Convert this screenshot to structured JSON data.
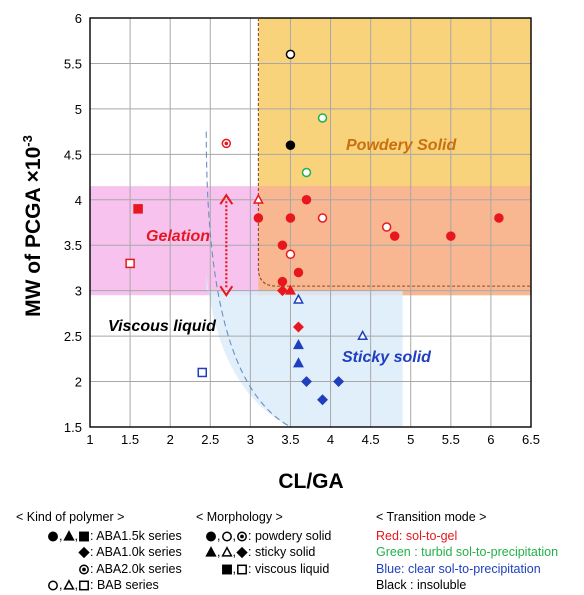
{
  "chart_data": {
    "type": "scatter",
    "xlabel": "CL/GA",
    "ylabel": "MW of PCGA ×10",
    "ylabel_sup": "-3",
    "xlim": [
      1,
      6.5
    ],
    "ylim": [
      1.5,
      6
    ],
    "x_ticks": [
      "1",
      "1.5",
      "2",
      "2.5",
      "3",
      "3.5",
      "4",
      "4.5",
      "5",
      "5.5",
      "6",
      "6.5"
    ],
    "y_ticks": [
      "1.5",
      "2",
      "2.5",
      "3",
      "3.5",
      "4",
      "4.5",
      "5",
      "5.5",
      "6"
    ],
    "grid": true,
    "regions": [
      {
        "label": "Powdery Solid",
        "color": "#f5c96e"
      },
      {
        "label": "Gelation",
        "color": "#f7b8ee"
      },
      {
        "label": "Viscous liquid",
        "color": "#000000"
      },
      {
        "label": "Sticky solid",
        "color": "#1f3fbf"
      }
    ],
    "colors": {
      "red": "#e8171f",
      "green": "#23b04a",
      "blue": "#1f3fbf",
      "black": "#000000"
    },
    "points": [
      {
        "x": 3.5,
        "y": 5.6,
        "shape": "circle",
        "fill": "open",
        "color": "black"
      },
      {
        "x": 3.5,
        "y": 4.6,
        "shape": "circle",
        "fill": "filled",
        "color": "black"
      },
      {
        "x": 3.9,
        "y": 4.9,
        "shape": "circle",
        "fill": "open",
        "color": "green"
      },
      {
        "x": 3.7,
        "y": 4.3,
        "shape": "circle",
        "fill": "open",
        "color": "green"
      },
      {
        "x": 2.7,
        "y": 4.62,
        "shape": "circle",
        "fill": "dotted",
        "color": "red"
      },
      {
        "x": 3.1,
        "y": 4.0,
        "shape": "triangle",
        "fill": "open",
        "color": "red"
      },
      {
        "x": 3.1,
        "y": 3.8,
        "shape": "circle",
        "fill": "filled",
        "color": "red"
      },
      {
        "x": 3.5,
        "y": 3.8,
        "shape": "circle",
        "fill": "filled",
        "color": "red"
      },
      {
        "x": 3.7,
        "y": 4.0,
        "shape": "circle",
        "fill": "filled",
        "color": "red"
      },
      {
        "x": 3.9,
        "y": 3.8,
        "shape": "circle",
        "fill": "open",
        "color": "red"
      },
      {
        "x": 3.4,
        "y": 3.5,
        "shape": "circle",
        "fill": "filled",
        "color": "red"
      },
      {
        "x": 3.5,
        "y": 3.4,
        "shape": "circle",
        "fill": "open",
        "color": "red"
      },
      {
        "x": 3.4,
        "y": 3.1,
        "shape": "circle",
        "fill": "filled",
        "color": "red"
      },
      {
        "x": 3.6,
        "y": 3.2,
        "shape": "circle",
        "fill": "filled",
        "color": "red"
      },
      {
        "x": 3.4,
        "y": 3.0,
        "shape": "diamond",
        "fill": "filled",
        "color": "red"
      },
      {
        "x": 3.5,
        "y": 3.0,
        "shape": "triangle",
        "fill": "filled",
        "color": "red"
      },
      {
        "x": 4.7,
        "y": 3.7,
        "shape": "circle",
        "fill": "open",
        "color": "red"
      },
      {
        "x": 4.8,
        "y": 3.6,
        "shape": "circle",
        "fill": "filled",
        "color": "red"
      },
      {
        "x": 5.5,
        "y": 3.6,
        "shape": "circle",
        "fill": "filled",
        "color": "red"
      },
      {
        "x": 6.1,
        "y": 3.8,
        "shape": "circle",
        "fill": "filled",
        "color": "red"
      },
      {
        "x": 1.6,
        "y": 3.9,
        "shape": "square",
        "fill": "filled",
        "color": "red"
      },
      {
        "x": 1.5,
        "y": 3.3,
        "shape": "square",
        "fill": "open",
        "color": "red"
      },
      {
        "x": 3.6,
        "y": 2.6,
        "shape": "diamond",
        "fill": "filled",
        "color": "red"
      },
      {
        "x": 3.6,
        "y": 2.9,
        "shape": "triangle",
        "fill": "open",
        "color": "blue"
      },
      {
        "x": 3.6,
        "y": 2.4,
        "shape": "triangle",
        "fill": "filled",
        "color": "blue"
      },
      {
        "x": 4.4,
        "y": 2.5,
        "shape": "triangle",
        "fill": "open",
        "color": "blue"
      },
      {
        "x": 3.6,
        "y": 2.2,
        "shape": "triangle",
        "fill": "filled",
        "color": "blue"
      },
      {
        "x": 3.7,
        "y": 2.0,
        "shape": "diamond",
        "fill": "filled",
        "color": "blue"
      },
      {
        "x": 4.1,
        "y": 2.0,
        "shape": "diamond",
        "fill": "filled",
        "color": "blue"
      },
      {
        "x": 3.9,
        "y": 1.8,
        "shape": "diamond",
        "fill": "filled",
        "color": "blue"
      },
      {
        "x": 2.4,
        "y": 2.1,
        "shape": "square",
        "fill": "open",
        "color": "blue"
      }
    ]
  },
  "legend": {
    "polymer_title": "< Kind of polymer >",
    "polymer_items": [
      {
        "label": ": ABA1.5k series"
      },
      {
        "label": ": ABA1.0k series"
      },
      {
        "label": ": ABA2.0k series"
      },
      {
        "label": ": BAB series"
      }
    ],
    "morphology_title": "< Morphology >",
    "morphology_items": [
      {
        "label": ": powdery solid"
      },
      {
        "label": ": sticky solid"
      },
      {
        "label": ": viscous liquid"
      }
    ],
    "transition_title": "< Transition mode >",
    "transition_items": [
      {
        "label": "Red: sol-to-gel",
        "color": "#e8171f"
      },
      {
        "label": "Green : turbid sol-to-precipitation",
        "color": "#23b04a"
      },
      {
        "label": "Blue: clear sol-to-precipitation",
        "color": "#1f3fbf"
      },
      {
        "label": "Black : insoluble",
        "color": "#000000"
      }
    ]
  }
}
